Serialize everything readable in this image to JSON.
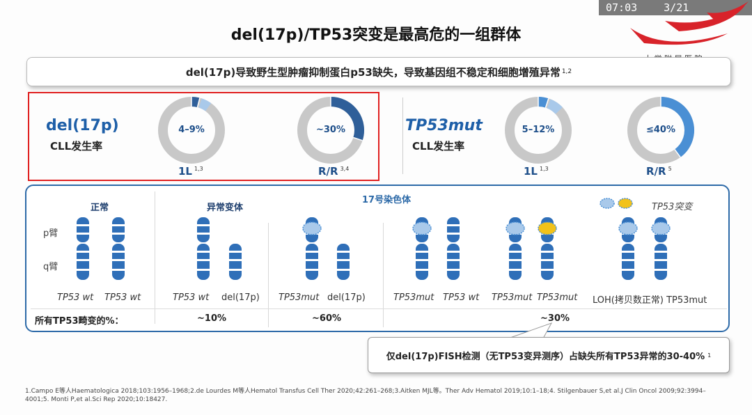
{
  "player": {
    "time": "07:03",
    "page": "3/21"
  },
  "title": "del(17p)/TP53突变是最高危的一组群体",
  "info": {
    "text": "del(17p)导致野生型肿瘤抑制蛋白p53缺失，导致基因组不稳定和细胞增殖异常",
    "refs": "1,2"
  },
  "incidence": {
    "del17p": {
      "label": "del(17p)",
      "sub": "CLL发生率",
      "donuts": [
        {
          "value": "4–9%",
          "caption": "1L",
          "refs": "1,3",
          "fraction_dark": 0.04,
          "fraction_light": 0.05
        },
        {
          "value": "~30%",
          "caption": "R/R",
          "refs": "3,4",
          "fraction_dark": 0.3,
          "fraction_light": 0
        }
      ]
    },
    "tp53mut": {
      "label": "TP53mut",
      "sub": "CLL发生率",
      "donuts": [
        {
          "value": "5–12%",
          "caption": "1L",
          "refs": "1,3",
          "fraction_dark": 0.05,
          "fraction_light": 0.07
        },
        {
          "value": "≤40%",
          "caption": "R/R",
          "refs": "5",
          "fraction_dark": 0.4,
          "fraction_light": 0
        }
      ]
    }
  },
  "panel": {
    "title": "17号染色体",
    "normal": "正常",
    "abnormal": "异常变体",
    "legend": "TP53突变",
    "p_arm": "p臂",
    "q_arm": "q臂",
    "labels": {
      "n1": "TP53 wt",
      "n2": "TP53 wt",
      "a1": "TP53 wt",
      "a2": "del(17p)",
      "b1": "TP53mut",
      "b2": "del(17p)",
      "c1": "TP53mut",
      "c2": "TP53 wt",
      "d1": "TP53mut",
      "d2": "TP53mut",
      "e": "LOH(拷贝数正常) TP53mut"
    },
    "row_label": "所有TP53畸变的%：",
    "pct1": "~10%",
    "pct2": "~60%",
    "pct3": "~30%"
  },
  "callout": {
    "text": "仅del(17p)FISH检测（无TP53变异测序）占缺失所有TP53异常的30-40%",
    "refs": "1"
  },
  "footnote": "1.Campo E等人Haematologica 2018;103:1956–1968;2.de Lourdes M等人Hematol Transfus Cell Ther 2020;42:261–268;3.Aitken MJL等。Ther Adv Hematol 2019;10:1–18;4. Stilgenbauer S,et al.J Clin Oncol 2009;92:3994–4001;5. Monti P,et al.Sci Rep 2020;10:18427.",
  "colors": {
    "dark_blue": "#2f5f99",
    "mid_blue": "#4a8fd4",
    "light_blue": "#a9c9ea",
    "grey": "#c8c8c8",
    "red_frame": "#e02020",
    "mutation": "#f2c21a"
  }
}
